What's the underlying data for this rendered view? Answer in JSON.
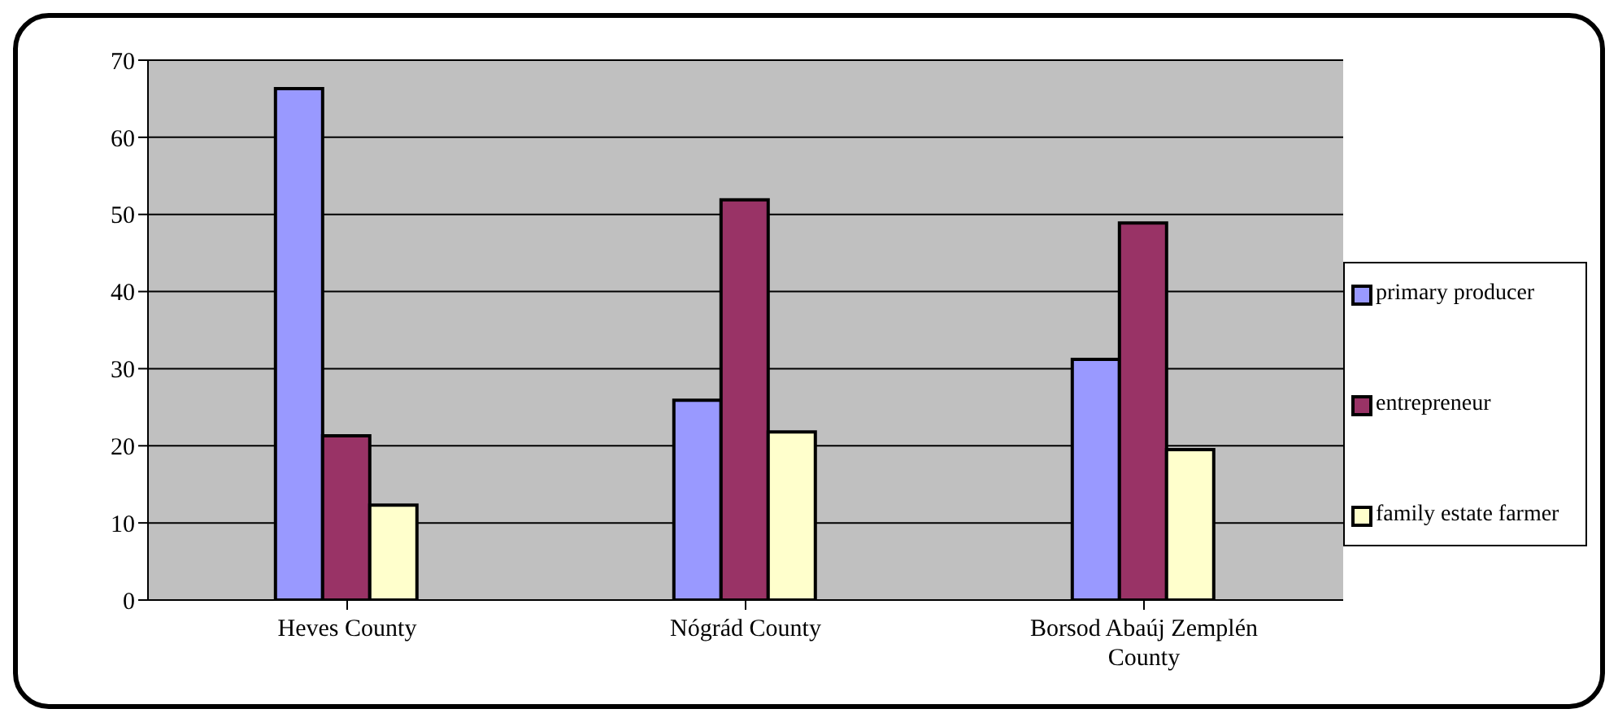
{
  "chart_data": {
    "type": "bar",
    "categories": [
      "Heves County",
      "Nógrád County",
      "Borsod Abaúj Zemplén County"
    ],
    "series": [
      {
        "name": "primary producer",
        "color": "#9999ff",
        "values": [
          66.3,
          25.9,
          31.2
        ]
      },
      {
        "name": "entrepreneur",
        "color": "#993366",
        "values": [
          21.3,
          51.9,
          48.9
        ]
      },
      {
        "name": "family estate farmer",
        "color": "#ffffcc",
        "values": [
          12.3,
          21.8,
          19.5
        ]
      }
    ],
    "ylim": [
      0,
      70
    ],
    "yticks": [
      0,
      10,
      20,
      30,
      40,
      50,
      60,
      70
    ],
    "grid": "y",
    "legend": "right"
  }
}
